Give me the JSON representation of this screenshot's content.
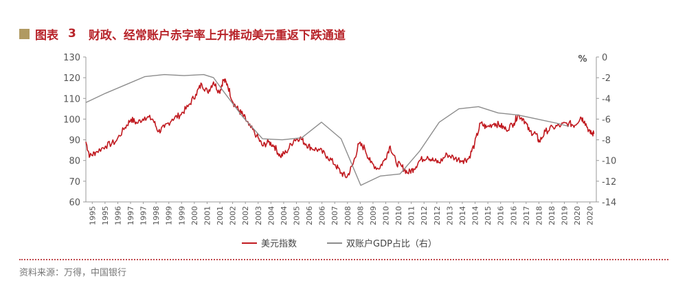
{
  "header": {
    "figure_label": "图表",
    "figure_number": "3",
    "title": "财政、经常账户赤字率上升推动美元重返下跌通道"
  },
  "footer": {
    "source": "资料来源：万得，中国银行"
  },
  "colors": {
    "usd_index": "#c0191f",
    "gdp_ratio": "#8c8c8c",
    "title": "#b8242a",
    "square": "#b09a62"
  },
  "chart_data": {
    "type": "line",
    "title": "财政、经常账户赤字率上升推动美元重返下跌通道",
    "y_left": {
      "min": 60,
      "max": 130,
      "step": 10,
      "ticks": [
        "60",
        "70",
        "80",
        "90",
        "100",
        "110",
        "120",
        "130"
      ]
    },
    "y_right": {
      "min": -14,
      "max": 0,
      "step": 2,
      "unit": "%",
      "ticks": [
        "-14",
        "-12",
        "-10",
        "-8",
        "-6",
        "-4",
        "-2",
        "0"
      ]
    },
    "x_range": [
      1995,
      2021
    ],
    "x_ticks": [
      "1995",
      "1995",
      "1996",
      "1997",
      "1997",
      "1998",
      "1999",
      "1999",
      "2000",
      "2001",
      "2001",
      "2002",
      "2002",
      "2003",
      "2004",
      "2004",
      "2005",
      "2006",
      "2006",
      "2007",
      "2008",
      "2008",
      "2009",
      "2010",
      "2010",
      "2011",
      "2012",
      "2012",
      "2013",
      "2014",
      "2014",
      "2015",
      "2016",
      "2016",
      "2017",
      "2018",
      "2018",
      "2019",
      "2020",
      "2020"
    ],
    "legend": {
      "placement": "bottom"
    },
    "series": [
      {
        "name": "美元指数",
        "axis": "left",
        "points": [
          [
            1995.0,
            89
          ],
          [
            1995.2,
            82
          ],
          [
            1995.5,
            84
          ],
          [
            1996.0,
            87
          ],
          [
            1996.5,
            89
          ],
          [
            1997.0,
            96
          ],
          [
            1997.3,
            100
          ],
          [
            1997.6,
            98
          ],
          [
            1998.0,
            101
          ],
          [
            1998.4,
            100
          ],
          [
            1998.7,
            94
          ],
          [
            1999.0,
            96
          ],
          [
            1999.4,
            100
          ],
          [
            1999.8,
            102
          ],
          [
            2000.2,
            106
          ],
          [
            2000.6,
            112
          ],
          [
            2000.9,
            117
          ],
          [
            2001.2,
            113
          ],
          [
            2001.5,
            118
          ],
          [
            2001.8,
            113
          ],
          [
            2002.0,
            119
          ],
          [
            2002.2,
            117
          ],
          [
            2002.5,
            108
          ],
          [
            2002.8,
            104
          ],
          [
            2003.0,
            102
          ],
          [
            2003.3,
            97
          ],
          [
            2003.7,
            92
          ],
          [
            2004.0,
            87
          ],
          [
            2004.3,
            89
          ],
          [
            2004.6,
            87
          ],
          [
            2004.9,
            82
          ],
          [
            2005.2,
            84
          ],
          [
            2005.6,
            90
          ],
          [
            2005.9,
            91
          ],
          [
            2006.2,
            88
          ],
          [
            2006.5,
            86
          ],
          [
            2006.9,
            85
          ],
          [
            2007.3,
            82
          ],
          [
            2007.7,
            78
          ],
          [
            2008.0,
            74
          ],
          [
            2008.3,
            72
          ],
          [
            2008.6,
            78
          ],
          [
            2008.9,
            88
          ],
          [
            2009.2,
            86
          ],
          [
            2009.5,
            79
          ],
          [
            2009.9,
            76
          ],
          [
            2010.2,
            80
          ],
          [
            2010.5,
            87
          ],
          [
            2010.8,
            79
          ],
          [
            2011.1,
            77
          ],
          [
            2011.4,
            74
          ],
          [
            2011.7,
            76
          ],
          [
            2012.0,
            80
          ],
          [
            2012.4,
            82
          ],
          [
            2012.7,
            80
          ],
          [
            2013.0,
            79
          ],
          [
            2013.4,
            83
          ],
          [
            2013.8,
            81
          ],
          [
            2014.2,
            80
          ],
          [
            2014.5,
            81
          ],
          [
            2014.8,
            88
          ],
          [
            2015.1,
            98
          ],
          [
            2015.4,
            96
          ],
          [
            2015.8,
            98
          ],
          [
            2016.1,
            97
          ],
          [
            2016.4,
            95
          ],
          [
            2016.8,
            98
          ],
          [
            2017.0,
            102
          ],
          [
            2017.3,
            100
          ],
          [
            2017.6,
            94
          ],
          [
            2017.9,
            93
          ],
          [
            2018.1,
            89
          ],
          [
            2018.4,
            94
          ],
          [
            2018.8,
            96
          ],
          [
            2019.2,
            97
          ],
          [
            2019.6,
            98
          ],
          [
            2019.9,
            97
          ],
          [
            2020.2,
            101
          ],
          [
            2020.4,
            99
          ],
          [
            2020.7,
            93
          ],
          [
            2020.9,
            93
          ]
        ]
      },
      {
        "name": "双账户GDP占比（右）",
        "axis": "right",
        "points": [
          [
            1995.0,
            -4.4
          ],
          [
            1996.0,
            -3.5
          ],
          [
            1997.0,
            -2.7
          ],
          [
            1998.0,
            -1.9
          ],
          [
            1999.0,
            -1.7
          ],
          [
            2000.0,
            -1.8
          ],
          [
            2001.0,
            -1.7
          ],
          [
            2001.5,
            -2.0
          ],
          [
            2002.0,
            -3.3
          ],
          [
            2003.0,
            -5.8
          ],
          [
            2004.0,
            -7.9
          ],
          [
            2005.0,
            -8.0
          ],
          [
            2006.0,
            -7.8
          ],
          [
            2007.0,
            -6.3
          ],
          [
            2008.0,
            -7.9
          ],
          [
            2009.0,
            -12.4
          ],
          [
            2010.0,
            -11.5
          ],
          [
            2011.0,
            -11.3
          ],
          [
            2012.0,
            -9.1
          ],
          [
            2013.0,
            -6.3
          ],
          [
            2014.0,
            -5.0
          ],
          [
            2015.0,
            -4.8
          ],
          [
            2016.0,
            -5.4
          ],
          [
            2017.0,
            -5.6
          ],
          [
            2018.0,
            -6.0
          ],
          [
            2019.0,
            -6.4
          ],
          [
            2019.6,
            -6.7
          ]
        ]
      }
    ]
  }
}
